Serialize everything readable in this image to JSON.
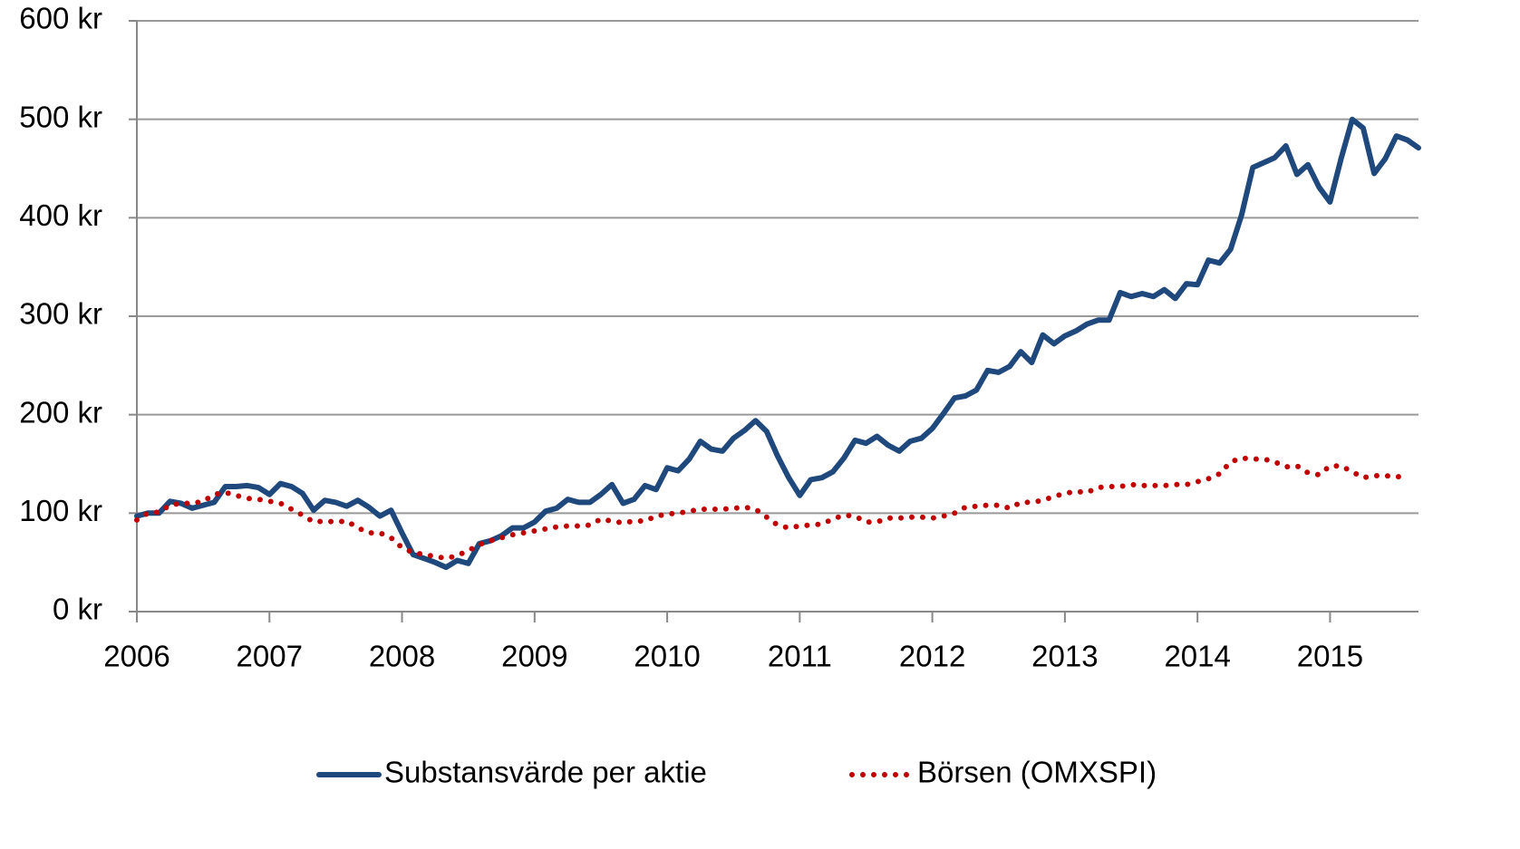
{
  "chart_data": {
    "type": "line",
    "x": [
      2006,
      2006.083,
      2006.167,
      2006.25,
      2006.333,
      2006.417,
      2006.5,
      2006.583,
      2006.667,
      2006.75,
      2006.833,
      2006.917,
      2007,
      2007.083,
      2007.167,
      2007.25,
      2007.333,
      2007.417,
      2007.5,
      2007.583,
      2007.667,
      2007.75,
      2007.833,
      2007.917,
      2008,
      2008.083,
      2008.167,
      2008.25,
      2008.333,
      2008.417,
      2008.5,
      2008.583,
      2008.667,
      2008.75,
      2008.833,
      2008.917,
      2009,
      2009.083,
      2009.167,
      2009.25,
      2009.333,
      2009.417,
      2009.5,
      2009.583,
      2009.667,
      2009.75,
      2009.833,
      2009.917,
      2010,
      2010.083,
      2010.167,
      2010.25,
      2010.333,
      2010.417,
      2010.5,
      2010.583,
      2010.667,
      2010.75,
      2010.833,
      2010.917,
      2011,
      2011.083,
      2011.167,
      2011.25,
      2011.333,
      2011.417,
      2011.5,
      2011.583,
      2011.667,
      2011.75,
      2011.833,
      2011.917,
      2012,
      2012.083,
      2012.167,
      2012.25,
      2012.333,
      2012.417,
      2012.5,
      2012.583,
      2012.667,
      2012.75,
      2012.833,
      2012.917,
      2013,
      2013.083,
      2013.167,
      2013.25,
      2013.333,
      2013.417,
      2013.5,
      2013.583,
      2013.667,
      2013.75,
      2013.833,
      2013.917,
      2014,
      2014.083,
      2014.167,
      2014.25,
      2014.333,
      2014.417,
      2014.5,
      2014.583,
      2014.667,
      2014.75,
      2014.833,
      2014.917,
      2015,
      2015.083,
      2015.167,
      2015.25,
      2015.333,
      2015.417,
      2015.5,
      2015.583,
      2015.667
    ],
    "series": [
      {
        "name": "Substansvärde per aktie",
        "color": "#1f497d",
        "style": "solid",
        "values": [
          97,
          100,
          100,
          112,
          110,
          105,
          108,
          111,
          127,
          127,
          128,
          126,
          119,
          130,
          127,
          120,
          103,
          113,
          111,
          107,
          113,
          106,
          97,
          103,
          80,
          58,
          54,
          50,
          45,
          52,
          49,
          69,
          72,
          77,
          85,
          85,
          91,
          102,
          105,
          114,
          111,
          111,
          119,
          129,
          110,
          114,
          128,
          124,
          146,
          143,
          155,
          173,
          165,
          163,
          176,
          184,
          194,
          183,
          158,
          136,
          118,
          134,
          136,
          142,
          156,
          174,
          171,
          178,
          169,
          163,
          173,
          176,
          186,
          201,
          217,
          219,
          225,
          245,
          243,
          249,
          264,
          253,
          281,
          272,
          280,
          285,
          292,
          296,
          296,
          324,
          320,
          323,
          320,
          327,
          318,
          333,
          332,
          357,
          354,
          368,
          403,
          451,
          456,
          461,
          473,
          444,
          454,
          431,
          416,
          460,
          500,
          491,
          445,
          460,
          483,
          479,
          471
        ]
      },
      {
        "name": "Börsen (OMXSPI)",
        "color": "#c00000",
        "style": "dotted",
        "values": [
          93,
          100,
          101,
          108,
          110,
          110,
          112,
          119,
          121,
          118,
          115,
          114,
          112,
          110,
          104,
          98,
          91,
          92,
          91,
          92,
          85,
          80,
          80,
          75,
          65,
          60,
          58,
          56,
          54,
          57,
          62,
          68,
          72,
          75,
          78,
          80,
          82,
          84,
          86,
          87,
          87,
          88,
          94,
          92,
          90,
          92,
          92,
          97,
          99,
          100,
          102,
          104,
          104,
          104,
          105,
          106,
          104,
          96,
          88,
          85,
          87,
          88,
          89,
          94,
          98,
          97,
          91,
          91,
          95,
          95,
          96,
          96,
          95,
          97,
          100,
          106,
          107,
          108,
          108,
          105,
          111,
          111,
          113,
          117,
          120,
          122,
          121,
          126,
          127,
          127,
          129,
          128,
          128,
          128,
          129,
          129,
          132,
          135,
          140,
          152,
          156,
          155,
          155,
          152,
          147,
          148,
          141,
          139,
          148,
          148,
          142,
          136,
          138,
          138,
          137,
          137,
          null
        ]
      }
    ],
    "xlim": [
      2006,
      2015.667
    ],
    "xticks": [
      2006,
      2007,
      2008,
      2009,
      2010,
      2011,
      2012,
      2013,
      2014,
      2015
    ],
    "ylim": [
      0,
      600
    ],
    "yticks": [
      {
        "value": 0,
        "label": "0 kr"
      },
      {
        "value": 100,
        "label": "100 kr"
      },
      {
        "value": 200,
        "label": "200 kr"
      },
      {
        "value": 300,
        "label": "300 kr"
      },
      {
        "value": 400,
        "label": "400 kr"
      },
      {
        "value": 500,
        "label": "500 kr"
      },
      {
        "value": 600,
        "label": "600 kr"
      }
    ],
    "grid": true,
    "legend": "bottom"
  }
}
